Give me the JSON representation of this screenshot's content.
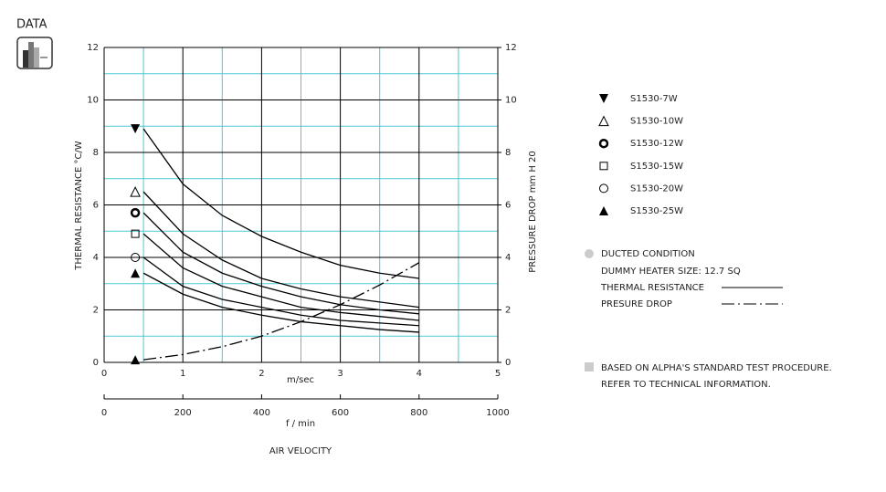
{
  "header": "DATA",
  "chart_data": {
    "type": "line",
    "x": [
      0.5,
      1,
      1.5,
      2,
      2.5,
      3,
      3.5,
      4
    ],
    "xlim": [
      0,
      5
    ],
    "xticks": [
      0,
      1,
      2,
      3,
      4,
      5
    ],
    "xlabel": "m/sec",
    "x2lim": [
      0,
      1000
    ],
    "x2ticks": [
      0,
      200,
      400,
      600,
      800,
      1000
    ],
    "x2label": "f / min",
    "xtitle": "AIR VELOCITY",
    "ylim": [
      0,
      12
    ],
    "yticks": [
      0,
      2,
      4,
      6,
      8,
      10,
      12
    ],
    "ylabel": "THERMAL  RESISTANCE   °C/W",
    "y2lim": [
      0,
      12
    ],
    "y2ticks": [
      0,
      2,
      4,
      6,
      8,
      10,
      12
    ],
    "y2label": "PRESSURE  DROP    mm H 20",
    "grid": true,
    "series": [
      {
        "name": "S1530-7W",
        "color": "#000",
        "marker": "triangle-down-filled",
        "values": [
          8.9,
          6.8,
          5.6,
          4.8,
          4.2,
          3.7,
          3.4,
          3.2
        ]
      },
      {
        "name": "S1530-10W",
        "color": "#000",
        "marker": "triangle-open",
        "values": [
          6.5,
          4.9,
          3.9,
          3.2,
          2.8,
          2.5,
          2.3,
          2.1
        ]
      },
      {
        "name": "S1530-12W",
        "color": "#000",
        "marker": "ring-bold",
        "values": [
          5.7,
          4.2,
          3.4,
          2.9,
          2.5,
          2.2,
          2.0,
          1.85
        ]
      },
      {
        "name": "S1530-15W",
        "color": "#000",
        "marker": "square-open",
        "values": [
          4.9,
          3.6,
          2.9,
          2.5,
          2.1,
          1.9,
          1.75,
          1.6
        ]
      },
      {
        "name": "S1530-20W",
        "color": "#000",
        "marker": "circle-open",
        "values": [
          4.0,
          2.9,
          2.4,
          2.1,
          1.8,
          1.6,
          1.5,
          1.4
        ]
      },
      {
        "name": "S1530-25W",
        "color": "#000",
        "marker": "triangle-filled",
        "values": [
          3.4,
          2.6,
          2.1,
          1.8,
          1.55,
          1.4,
          1.25,
          1.15
        ]
      }
    ],
    "pressure": {
      "color": "#000",
      "axis": "y2",
      "marker": "triangle-filled",
      "style": "dash-dot",
      "values": [
        0.1,
        0.3,
        0.6,
        1.0,
        1.55,
        2.2,
        2.95,
        3.8
      ]
    },
    "notes": {
      "condition": "DUCTED CONDITION",
      "heater": "DUMMY HEATER SIZE: 12.7 SQ",
      "thermal": "THERMAL RESISTANCE",
      "pressure": "PRESURE DROP",
      "procedure": "BASED ON ALPHA'S STANDARD TEST PROCEDURE.",
      "refer": "REFER TO TECHNICAL INFORMATION."
    }
  }
}
